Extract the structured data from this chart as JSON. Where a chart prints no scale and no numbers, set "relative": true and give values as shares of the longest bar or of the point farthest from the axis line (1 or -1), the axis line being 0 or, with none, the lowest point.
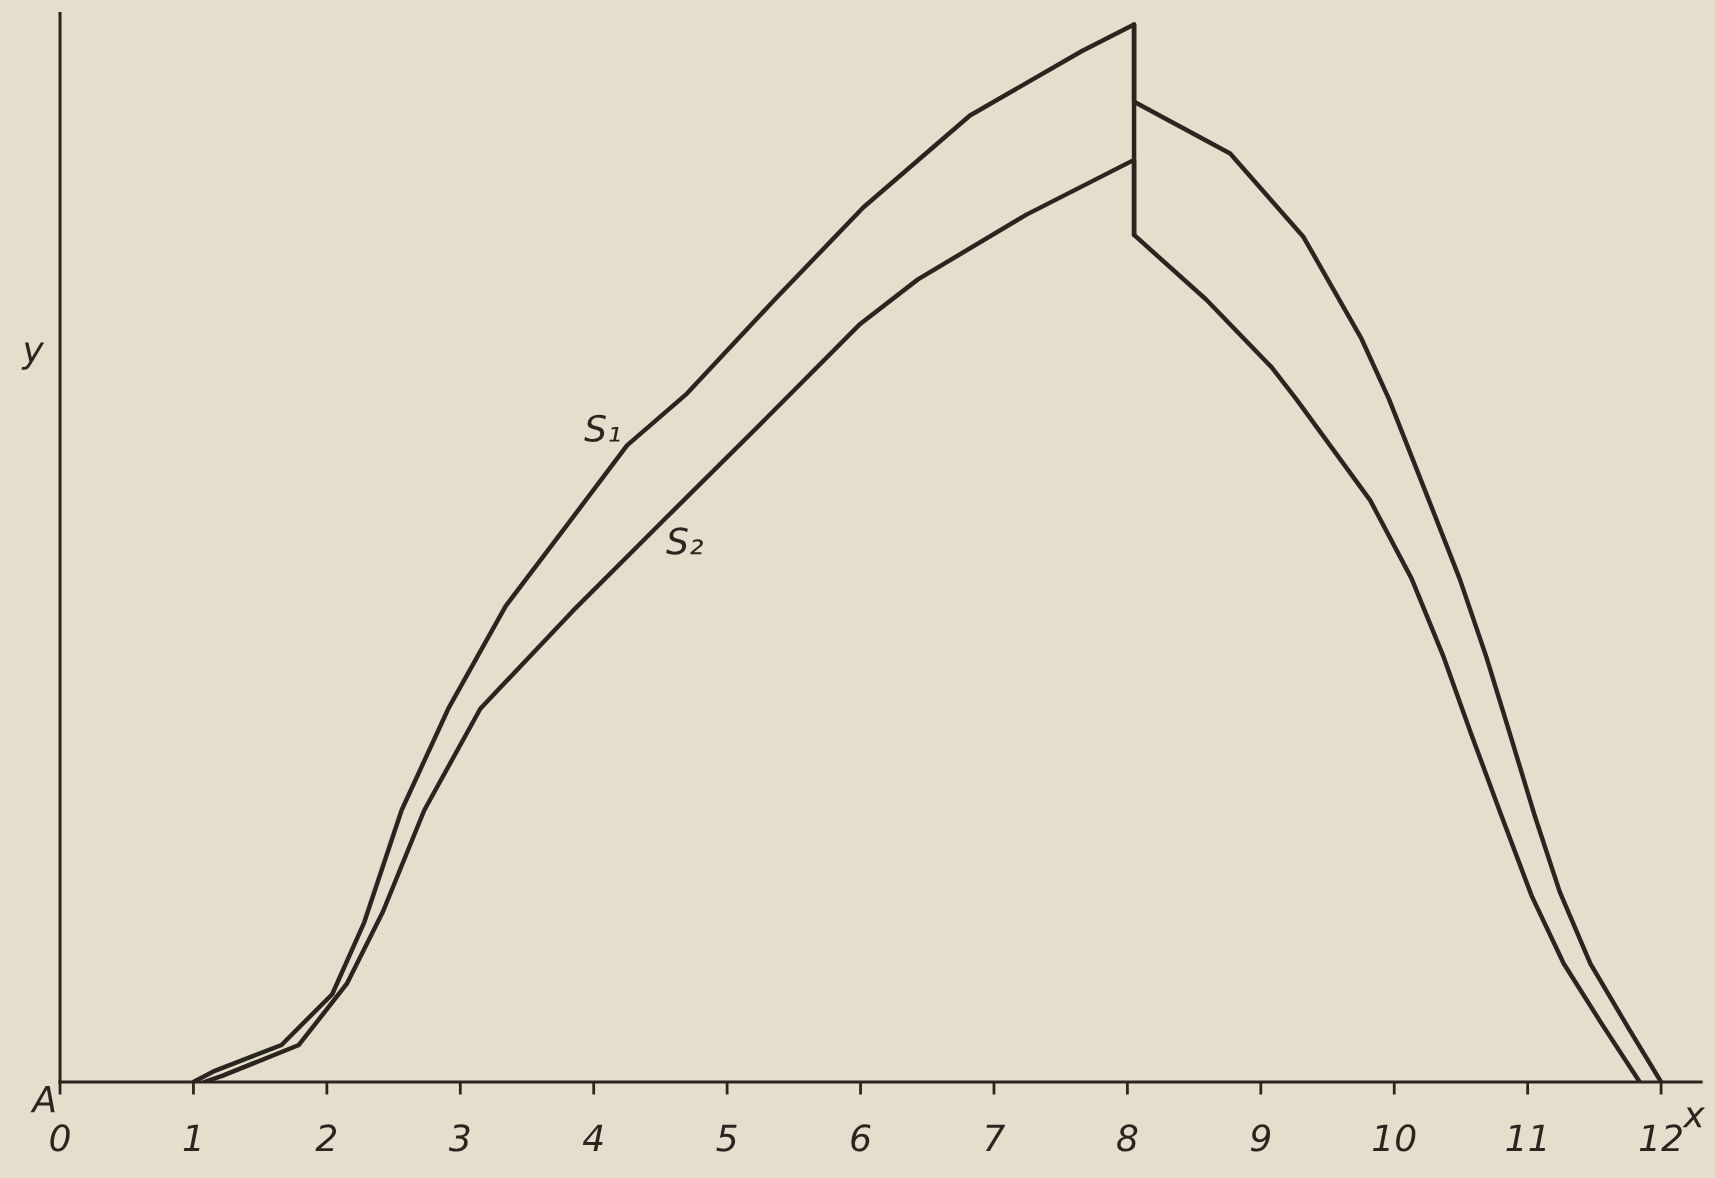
{
  "chart_data": {
    "type": "line",
    "relative": true,
    "xlabel": "x",
    "ylabel": "y",
    "annotations": [
      "A"
    ],
    "xlim": [
      0,
      12.3
    ],
    "xticks": [
      0,
      1,
      2,
      3,
      4,
      5,
      6,
      7,
      8,
      9,
      10,
      11,
      12
    ],
    "series": [
      {
        "name": "S₁",
        "color": "#2a251f",
        "x": [
          1.0,
          1.15,
          1.66,
          2.04,
          2.28,
          2.56,
          2.91,
          3.34,
          3.79,
          4.25,
          4.69,
          5.35,
          6.02,
          6.82,
          7.66,
          8.05,
          8.05,
          8.77,
          9.32,
          9.75,
          9.96,
          10.26,
          10.49,
          10.69,
          10.87,
          11.05,
          11.24,
          11.47,
          11.76,
          12.0
        ],
        "values": [
          0,
          0.01,
          0.035,
          0.083,
          0.151,
          0.257,
          0.353,
          0.45,
          0.525,
          0.602,
          0.65,
          0.739,
          0.827,
          0.914,
          0.975,
          1.0,
          0.927,
          0.878,
          0.799,
          0.704,
          0.646,
          0.55,
          0.476,
          0.402,
          0.328,
          0.253,
          0.18,
          0.112,
          0.05,
          0
        ]
      },
      {
        "name": "S₂",
        "color": "#2a251f",
        "x": [
          1.08,
          1.22,
          1.79,
          2.15,
          2.42,
          2.73,
          3.15,
          3.84,
          4.49,
          5.28,
          5.99,
          6.43,
          7.24,
          8.05,
          8.05,
          8.59,
          9.08,
          9.27,
          9.82,
          10.13,
          10.37,
          10.58,
          10.8,
          11.03,
          11.27,
          11.56,
          11.84
        ],
        "values": [
          0,
          0.006,
          0.035,
          0.093,
          0.161,
          0.257,
          0.353,
          0.445,
          0.527,
          0.626,
          0.716,
          0.759,
          0.82,
          0.872,
          0.801,
          0.74,
          0.676,
          0.645,
          0.55,
          0.476,
          0.402,
          0.328,
          0.253,
          0.176,
          0.112,
          0.054,
          0
        ]
      },
      {
        "color": "#2a251f",
        "x": [
          8.05,
          8.05
        ],
        "values": [
          1.0,
          0.801
        ]
      }
    ]
  }
}
